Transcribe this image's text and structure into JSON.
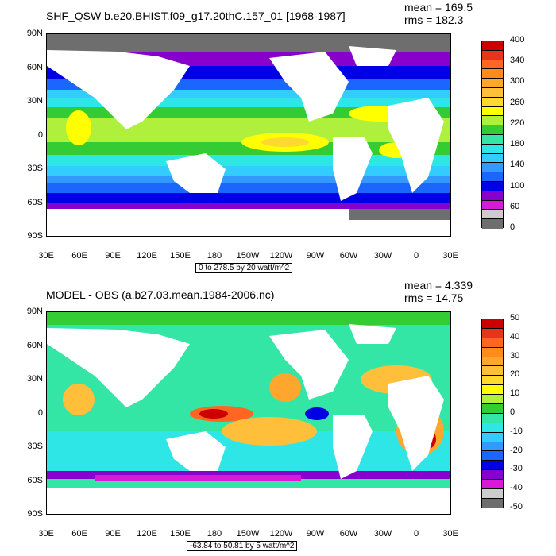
{
  "panels": [
    {
      "title": "SHF_QSW b.e20.BHIST.f09_g17.20thC.157_01 [1968-1987]",
      "mean": "mean = 169.5",
      "rms": "rms = 182.3",
      "info": "0 to 278.5 by 20 watt/m^2",
      "colorbar_labels": [
        "400",
        "",
        "340",
        "",
        "300",
        "",
        "260",
        "",
        "220",
        "",
        "180",
        "",
        "140",
        "",
        "100",
        "",
        "60",
        "",
        "0"
      ],
      "colorbar_colors": [
        "#cc0000",
        "#e8341a",
        "#ff6622",
        "#ff8c1a",
        "#ffa62e",
        "#ffbf3a",
        "#ffd92e",
        "#ffff00",
        "#aef03c",
        "#33cc33",
        "#33e6a6",
        "#2ee6e6",
        "#33ccff",
        "#3399ff",
        "#1a66ff",
        "#0000e6",
        "#8800cc",
        "#d81ad8",
        "#cccccc",
        "#6e6e6e"
      ]
    },
    {
      "title": "MODEL - OBS (a.b27.03.mean.1984-2006.nc)",
      "mean": "mean = 4.339",
      "rms": "rms = 14.75",
      "info": "-63.84 to 50.81 by 5 watt/m^2",
      "colorbar_labels": [
        "50",
        "40",
        "30",
        "20",
        "10",
        "0",
        "-10",
        "-20",
        "-30",
        "-40",
        "-50"
      ],
      "colorbar_colors": [
        "#cc0000",
        "#e8341a",
        "#ff6622",
        "#ff8c1a",
        "#ffa62e",
        "#ffbf3a",
        "#ffd92e",
        "#ffff00",
        "#aef03c",
        "#33cc33",
        "#33e6a6",
        "#2ee6e6",
        "#33ccff",
        "#3399ff",
        "#1a66ff",
        "#0000e6",
        "#8800cc",
        "#d81ad8",
        "#cccccc",
        "#6e6e6e"
      ]
    }
  ],
  "x_labels": [
    "30E",
    "60E",
    "90E",
    "120E",
    "150E",
    "180",
    "150W",
    "120W",
    "90W",
    "60W",
    "30W",
    "0",
    "30E"
  ],
  "y_labels": [
    "90N",
    "60N",
    "30N",
    "0",
    "30S",
    "60S",
    "90S"
  ]
}
